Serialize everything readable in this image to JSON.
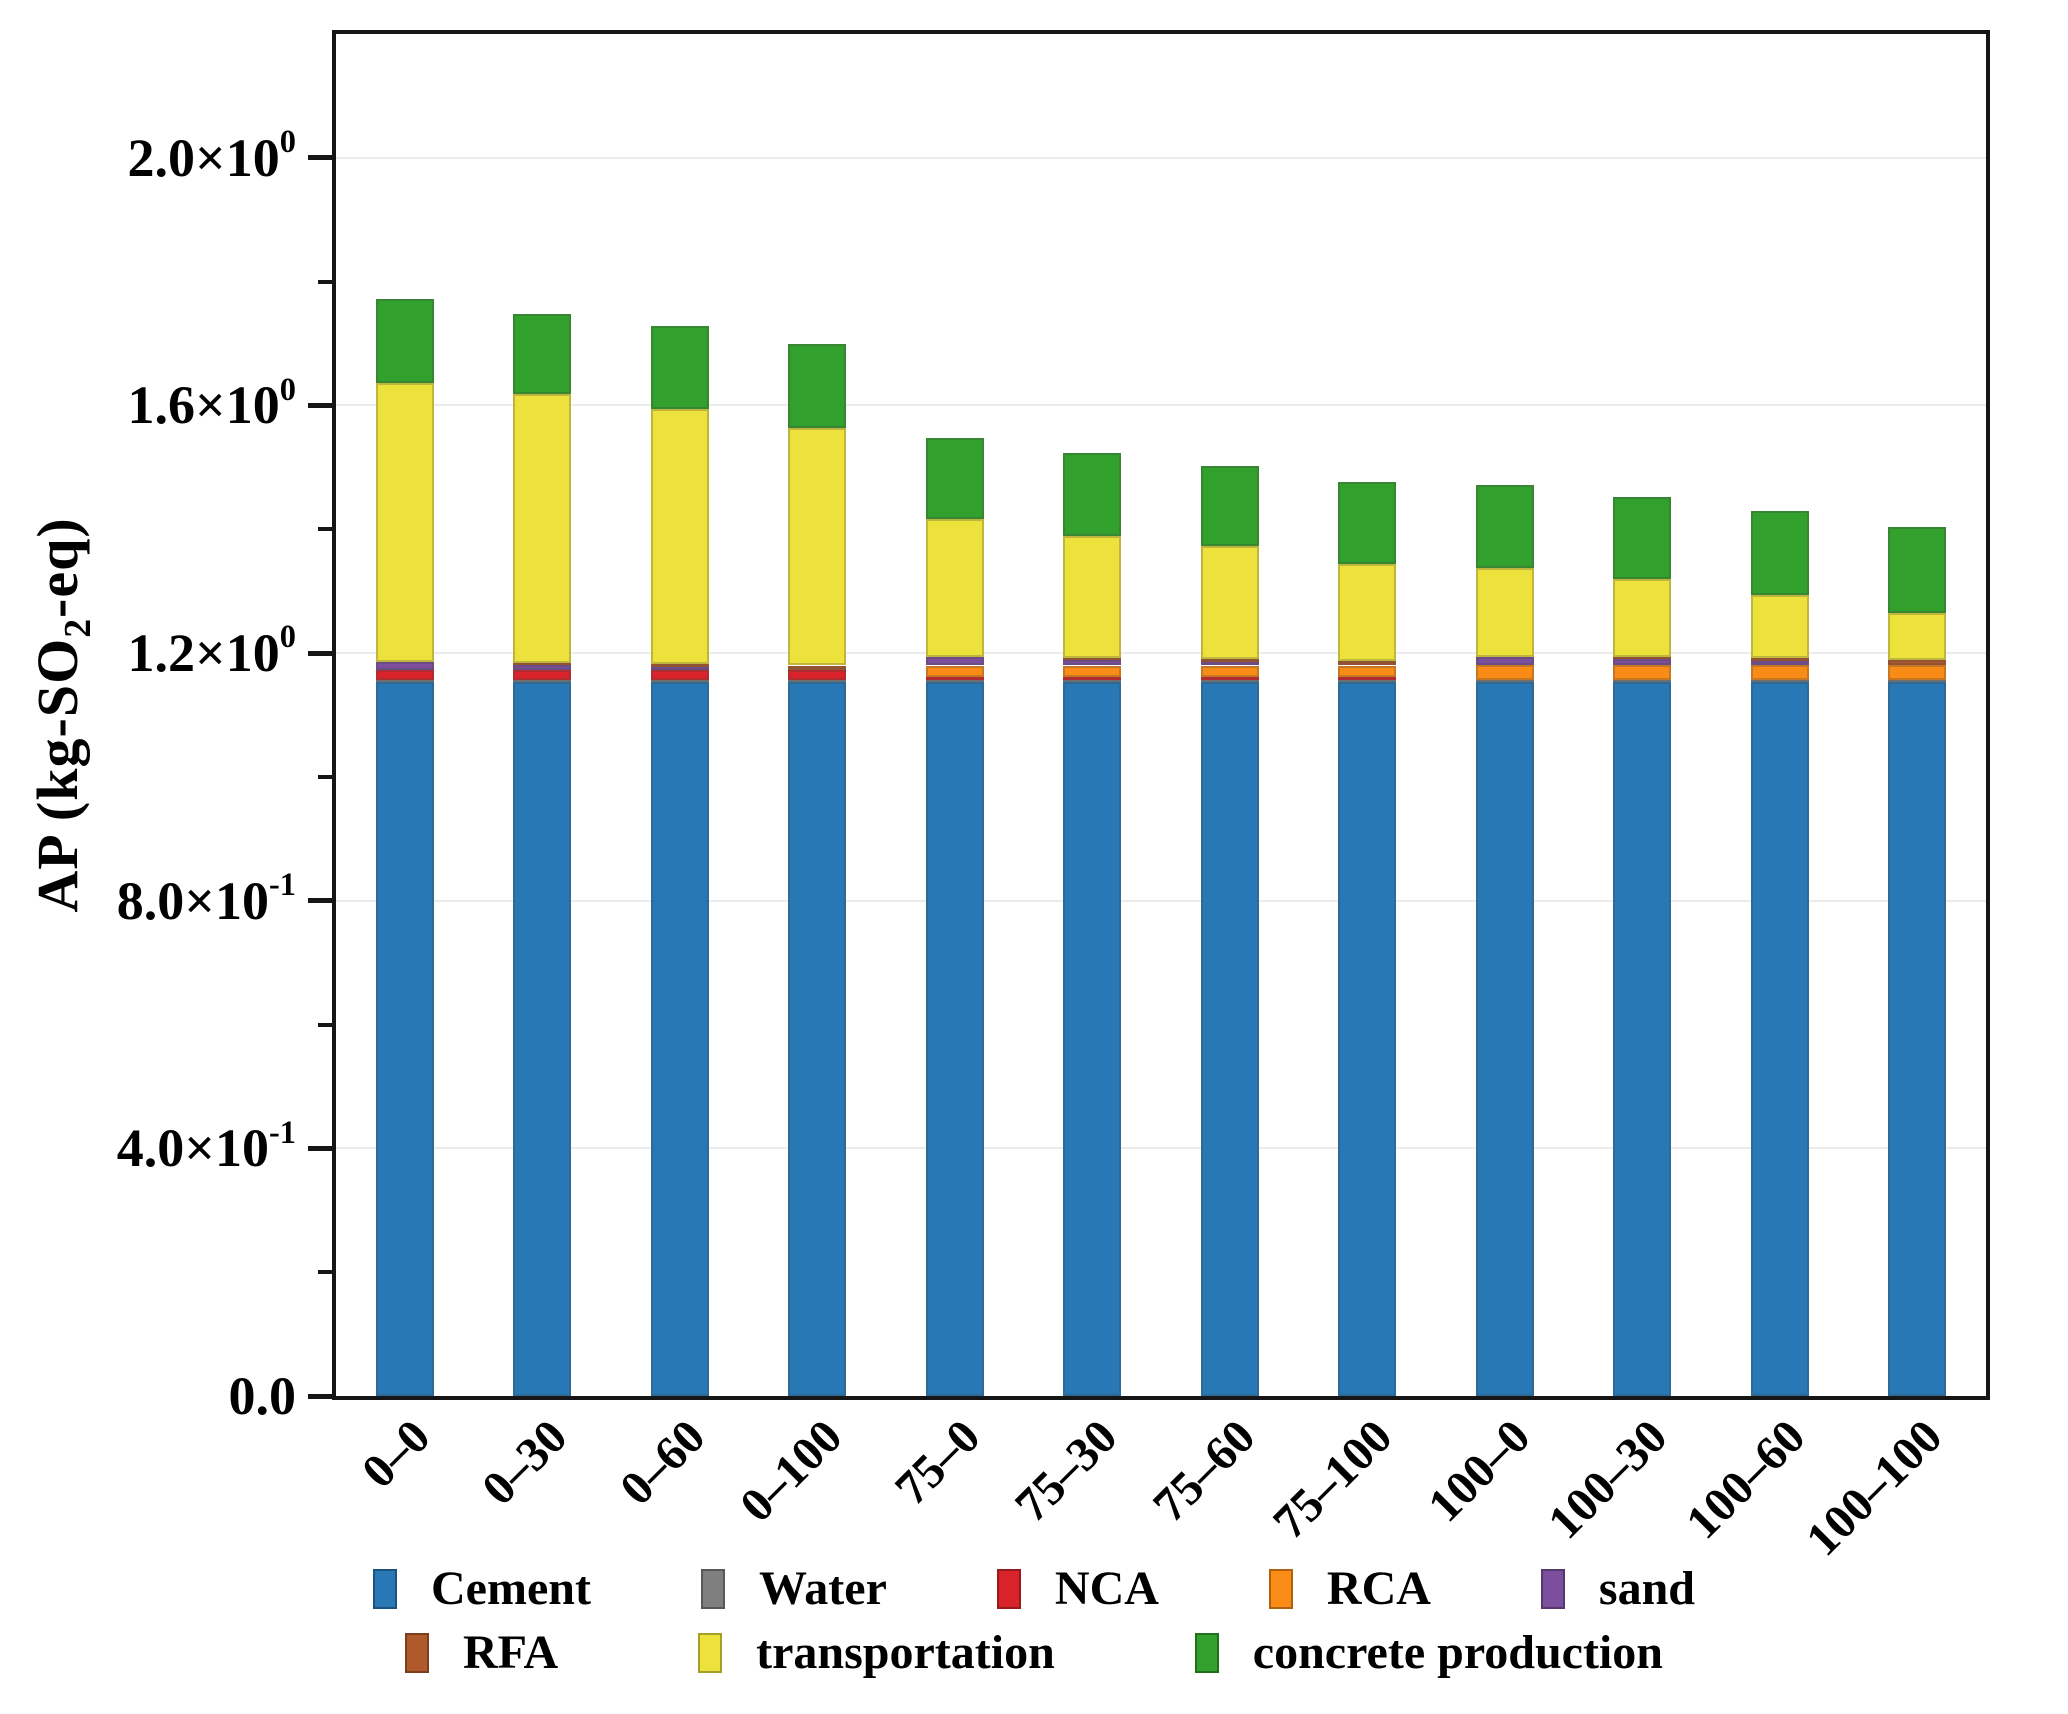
{
  "figure": {
    "y_axis_title": {
      "pre": "AP (kg-SO",
      "sub": "2",
      "post": "-eq)"
    }
  },
  "chart_data": {
    "type": "bar",
    "subtype": "stacked-vertical",
    "title": "",
    "xlabel": "",
    "ylabel": "AP (kg-SO2-eq)",
    "ylim": [
      0,
      2.2
    ],
    "grid": "horizontal-major-only",
    "legend_position": "bottom",
    "categories": [
      "0–0",
      "0–30",
      "0–60",
      "0–100",
      "75–0",
      "75–30",
      "75–60",
      "75–100",
      "100–0",
      "100–30",
      "100–60",
      "100–100"
    ],
    "series": [
      {
        "name": "Cement",
        "color": "#2878B5",
        "values": [
          1.154,
          1.154,
          1.154,
          1.154,
          1.154,
          1.154,
          1.154,
          1.154,
          1.154,
          1.154,
          1.154,
          1.154
        ]
      },
      {
        "name": "Water",
        "color": "#7F7F7F",
        "values": [
          0.002,
          0.002,
          0.002,
          0.002,
          0.002,
          0.002,
          0.002,
          0.002,
          0.002,
          0.002,
          0.002,
          0.002
        ]
      },
      {
        "name": "NCA",
        "color": "#D8232A",
        "values": [
          0.016,
          0.016,
          0.016,
          0.016,
          0.005,
          0.005,
          0.005,
          0.005,
          0,
          0,
          0,
          0
        ]
      },
      {
        "name": "RCA",
        "color": "#F98B17",
        "values": [
          0,
          0,
          0,
          0,
          0.019,
          0.019,
          0.019,
          0.019,
          0.025,
          0.025,
          0.025,
          0.025
        ]
      },
      {
        "name": "sand",
        "color": "#7B4F9E",
        "values": [
          0.013,
          0.009,
          0.006,
          0,
          0.013,
          0.009,
          0.006,
          0,
          0.013,
          0.009,
          0.006,
          0
        ]
      },
      {
        "name": "RFA",
        "color": "#B0592B",
        "values": [
          0,
          0.003,
          0.005,
          0.008,
          0,
          0.003,
          0.005,
          0.008,
          0,
          0.003,
          0.005,
          0.008
        ]
      },
      {
        "name": "transportation",
        "color": "#EDE23B",
        "values": [
          0.452,
          0.435,
          0.412,
          0.384,
          0.223,
          0.197,
          0.182,
          0.156,
          0.144,
          0.127,
          0.102,
          0.076
        ]
      },
      {
        "name": "concrete production",
        "color": "#32A02C",
        "values": [
          0.135,
          0.129,
          0.133,
          0.136,
          0.132,
          0.135,
          0.13,
          0.132,
          0.133,
          0.132,
          0.135,
          0.139
        ]
      }
    ],
    "totals": [
      1.772,
      1.748,
      1.728,
      1.7,
      1.548,
      1.524,
      1.503,
      1.476,
      1.471,
      1.452,
      1.429,
      1.404
    ],
    "y_ticks": [
      {
        "v": 0.0,
        "m": "0.0",
        "e": ""
      },
      {
        "v": 0.4,
        "m": "4.0×10",
        "e": "-1"
      },
      {
        "v": 0.8,
        "m": "8.0×10",
        "e": "-1"
      },
      {
        "v": 1.2,
        "m": "1.2×10",
        "e": "0"
      },
      {
        "v": 1.6,
        "m": "1.6×10",
        "e": "0"
      },
      {
        "v": 2.0,
        "m": "2.0×10",
        "e": "0"
      }
    ],
    "y_minor_ticks": [
      0.2,
      0.6,
      1.0,
      1.4,
      1.8
    ],
    "legend_rows": [
      [
        "Cement",
        "Water",
        "NCA",
        "RCA",
        "sand"
      ],
      [
        "RFA",
        "transportation",
        "concrete production"
      ]
    ]
  }
}
